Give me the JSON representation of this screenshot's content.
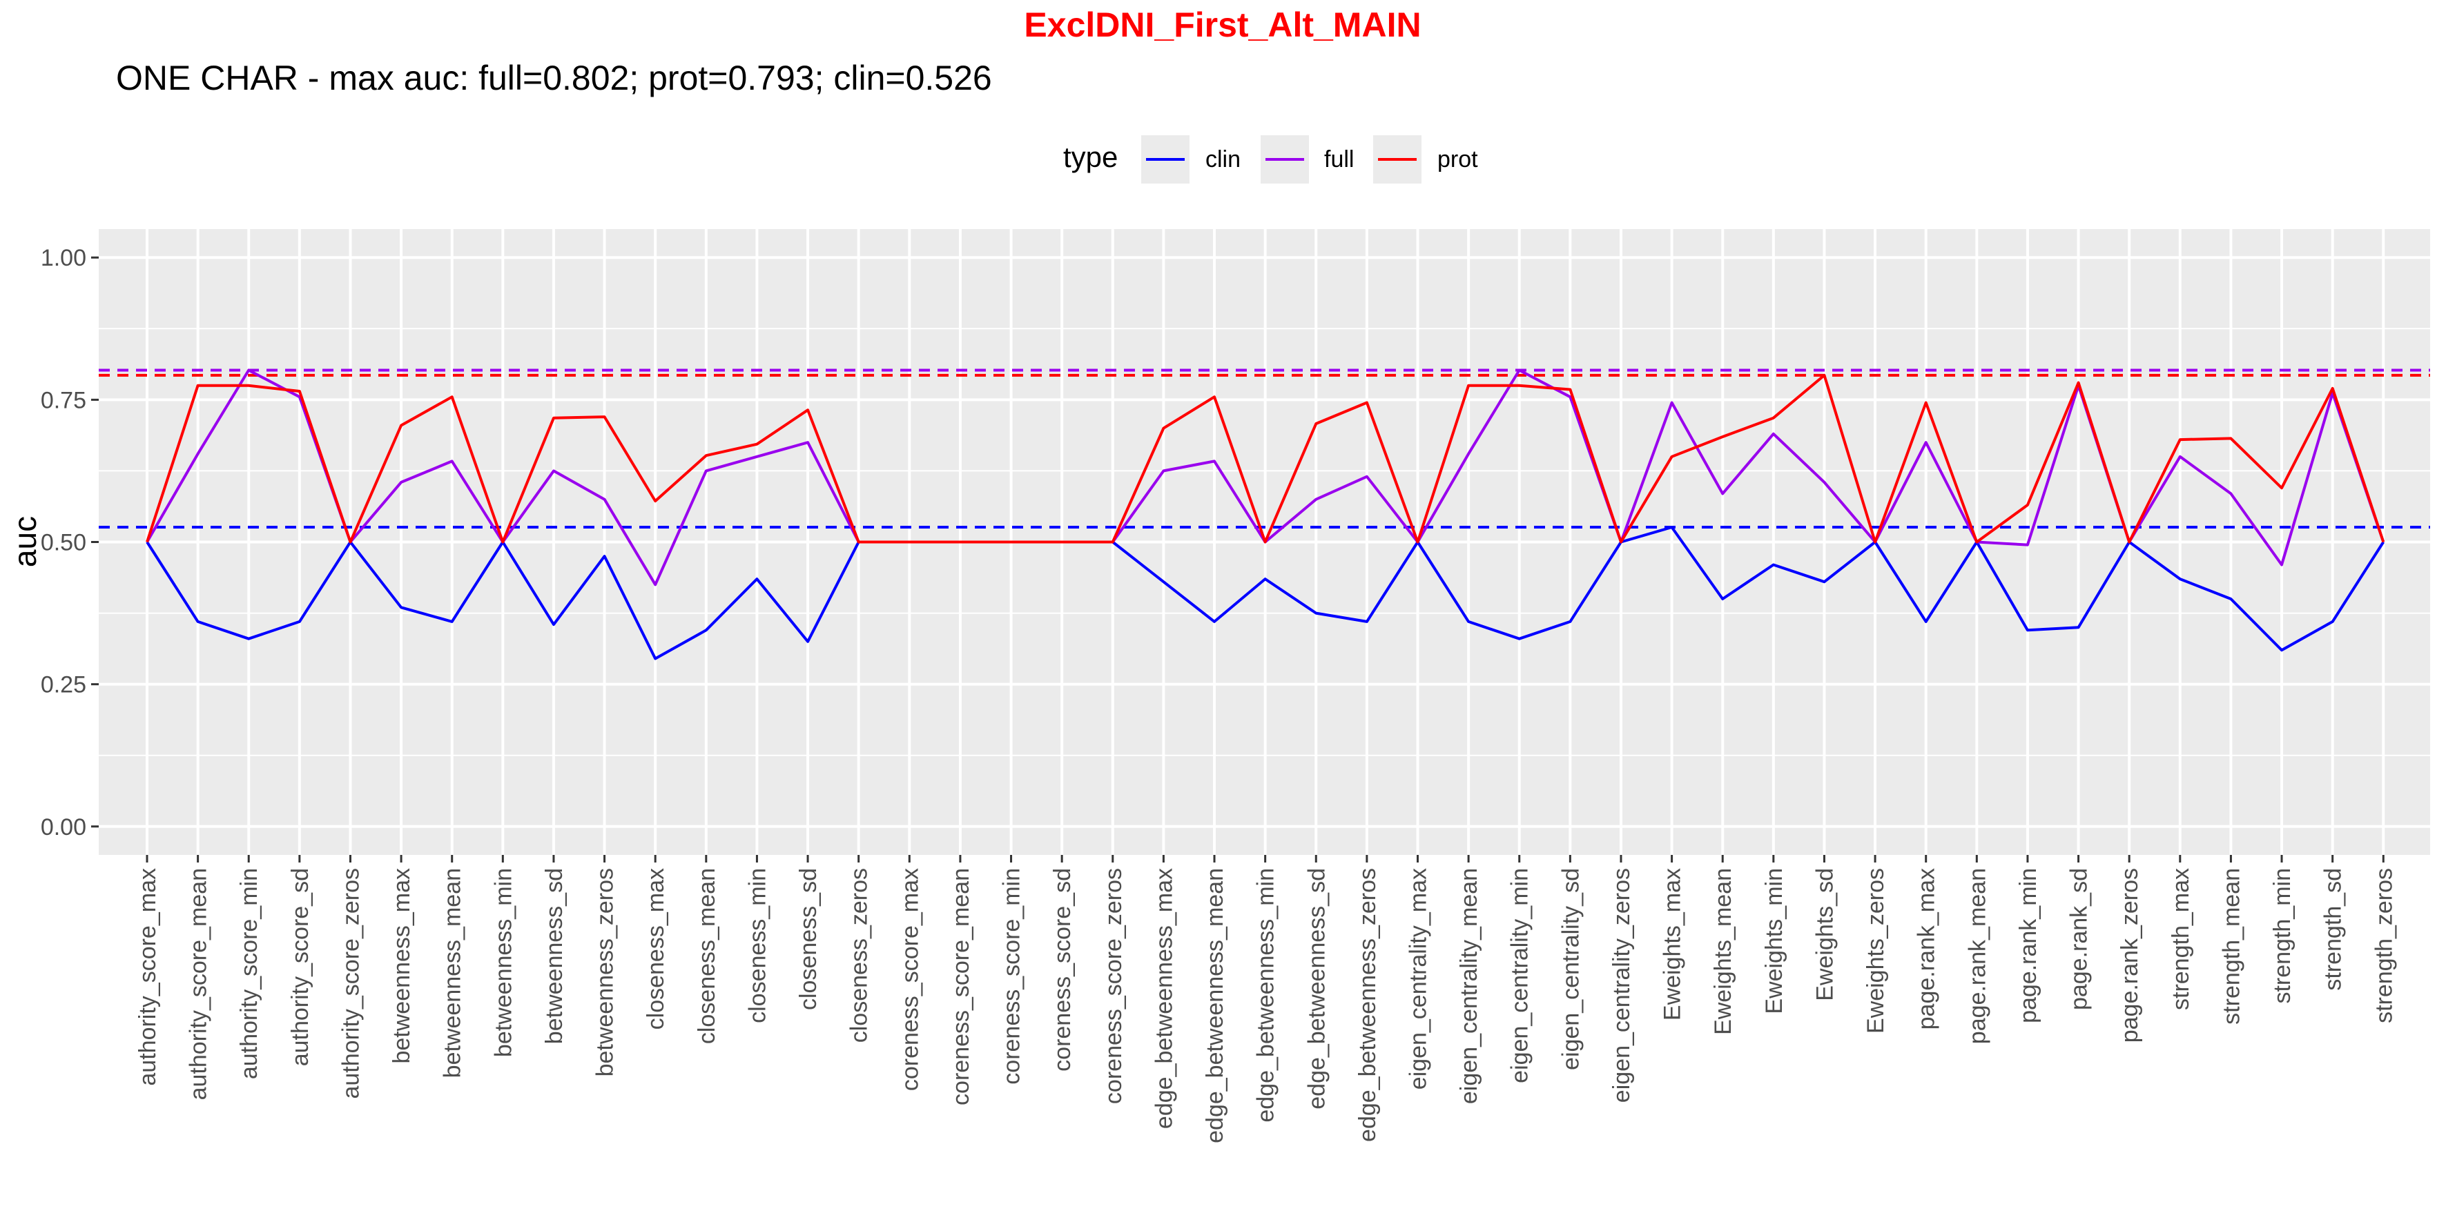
{
  "chart_data": {
    "type": "line",
    "title": "ExclDNI_First_Alt_MAIN",
    "subtitle": "ONE CHAR - max auc: full=0.802; prot=0.793; clin=0.526",
    "xlabel": "",
    "ylabel": "auc",
    "ylim": [
      -0.05,
      1.05
    ],
    "yticks": [
      0.0,
      0.25,
      0.5,
      0.75,
      1.0
    ],
    "ytick_labels": [
      "0.00",
      "0.25",
      "0.50",
      "0.75",
      "1.00"
    ],
    "grid": true,
    "legend": {
      "title": "type",
      "placement": "top"
    },
    "colors": {
      "title": "#ff0000",
      "clin": "#0000ff",
      "full": "#9900ee",
      "prot": "#ff0000",
      "panel": "#ebebeb",
      "grid": "#ffffff"
    },
    "categories": [
      "authority_score_max",
      "authority_score_mean",
      "authority_score_min",
      "authority_score_sd",
      "authority_score_zeros",
      "betweenness_max",
      "betweenness_mean",
      "betweenness_min",
      "betweenness_sd",
      "betweenness_zeros",
      "closeness_max",
      "closeness_mean",
      "closeness_min",
      "closeness_sd",
      "closeness_zeros",
      "coreness_score_max",
      "coreness_score_mean",
      "coreness_score_min",
      "coreness_score_sd",
      "coreness_score_zeros",
      "edge_betweenness_max",
      "edge_betweenness_mean",
      "edge_betweenness_min",
      "edge_betweenness_sd",
      "edge_betweenness_zeros",
      "eigen_centrality_max",
      "eigen_centrality_mean",
      "eigen_centrality_min",
      "eigen_centrality_sd",
      "eigen_centrality_zeros",
      "Eweights_max",
      "Eweights_mean",
      "Eweights_min",
      "Eweights_sd",
      "Eweights_zeros",
      "page.rank_max",
      "page.rank_mean",
      "page.rank_min",
      "page.rank_sd",
      "page.rank_zeros",
      "strength_max",
      "strength_mean",
      "strength_min",
      "strength_sd",
      "strength_zeros"
    ],
    "series": [
      {
        "name": "clin",
        "color": "#0000ff",
        "values": [
          0.5,
          0.36,
          0.33,
          0.36,
          0.5,
          0.385,
          0.36,
          0.5,
          0.355,
          0.475,
          0.295,
          0.345,
          0.435,
          0.325,
          0.5,
          0.5,
          0.5,
          0.5,
          0.5,
          0.5,
          0.43,
          0.36,
          0.435,
          0.375,
          0.36,
          0.5,
          0.36,
          0.33,
          0.36,
          0.5,
          0.526,
          0.4,
          0.46,
          0.43,
          0.5,
          0.36,
          0.5,
          0.345,
          0.35,
          0.5,
          0.435,
          0.4,
          0.31,
          0.36,
          0.5
        ]
      },
      {
        "name": "full",
        "color": "#9900ee",
        "values": [
          0.5,
          0.655,
          0.802,
          0.755,
          0.5,
          0.605,
          0.642,
          0.5,
          0.625,
          0.575,
          0.425,
          0.625,
          0.65,
          0.675,
          0.5,
          0.5,
          0.5,
          0.5,
          0.5,
          0.5,
          0.625,
          0.642,
          0.5,
          0.575,
          0.615,
          0.5,
          0.655,
          0.802,
          0.755,
          0.5,
          0.745,
          0.585,
          0.69,
          0.605,
          0.5,
          0.675,
          0.5,
          0.495,
          0.775,
          0.5,
          0.65,
          0.585,
          0.46,
          0.762,
          0.5
        ]
      },
      {
        "name": "prot",
        "color": "#ff0000",
        "values": [
          0.5,
          0.775,
          0.775,
          0.765,
          0.5,
          0.705,
          0.755,
          0.5,
          0.718,
          0.72,
          0.572,
          0.652,
          0.672,
          0.732,
          0.5,
          0.5,
          0.5,
          0.5,
          0.5,
          0.5,
          0.7,
          0.755,
          0.5,
          0.708,
          0.745,
          0.5,
          0.775,
          0.775,
          0.768,
          0.5,
          0.65,
          0.685,
          0.718,
          0.793,
          0.5,
          0.745,
          0.5,
          0.565,
          0.78,
          0.5,
          0.68,
          0.682,
          0.595,
          0.77,
          0.5
        ]
      }
    ],
    "hlines": [
      {
        "series": "full",
        "value": 0.802,
        "color": "#9900ee",
        "style": "dashed"
      },
      {
        "series": "prot",
        "value": 0.793,
        "color": "#ff0000",
        "style": "dashed"
      },
      {
        "series": "clin",
        "value": 0.526,
        "color": "#0000ff",
        "style": "dashed"
      }
    ]
  }
}
